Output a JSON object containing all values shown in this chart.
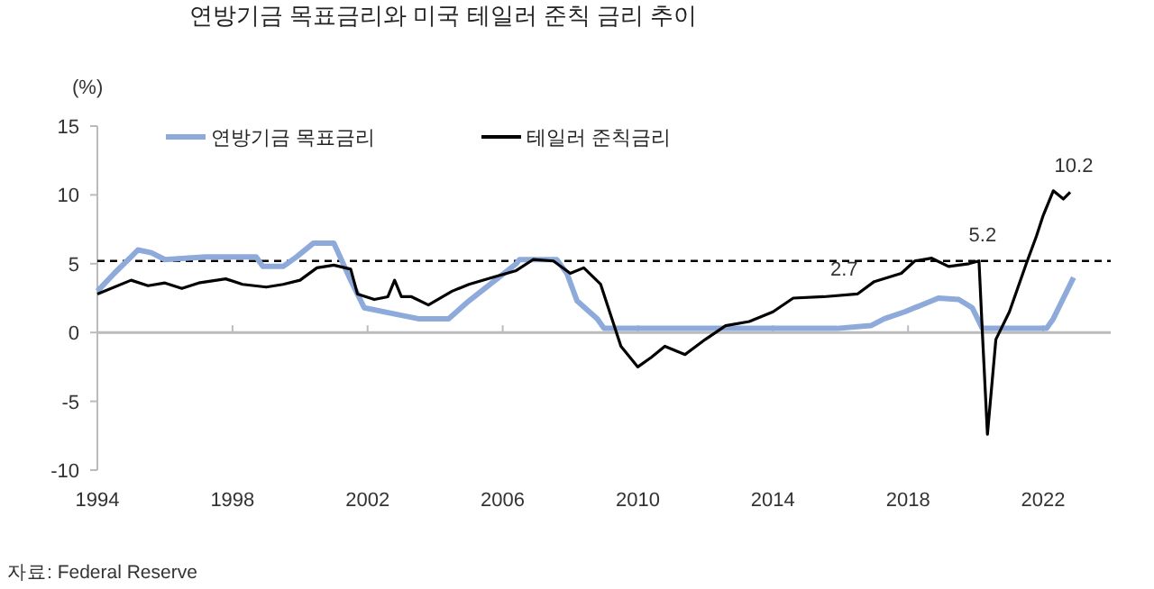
{
  "chart_data": {
    "type": "line",
    "title": "연방기금 목표금리와 미국 테일러 준칙 금리 추이",
    "ylabel": "(%)",
    "xlim": [
      1994,
      2024
    ],
    "xticks": [
      1994,
      1998,
      2002,
      2006,
      2010,
      2014,
      2018,
      2022
    ],
    "ylim": [
      -10,
      15
    ],
    "yticks": [
      -10,
      -5,
      0,
      5,
      10,
      15
    ],
    "legend": "top",
    "line_style": "solid",
    "series": [
      {
        "name": "연방기금 목표금리",
        "color": "#8eaadb",
        "x": [
          1994,
          1994.5,
          1995,
          1995.2,
          1995.6,
          1996,
          1997.2,
          1998.7,
          1998.9,
          1999.5,
          1999.9,
          2000.4,
          2001,
          2001.5,
          2001.9,
          2002.9,
          2003.5,
          2004.4,
          2005,
          2006.4,
          2006.5,
          2007.6,
          2007.9,
          2008.2,
          2008.8,
          2009,
          2015.9,
          2016.9,
          2017.3,
          2017.9,
          2018.9,
          2019.5,
          2019.9,
          2020.2,
          2022.1,
          2022.3,
          2022.6,
          2022.9
        ],
        "values": [
          3.0,
          4.3,
          5.5,
          6.0,
          5.8,
          5.3,
          5.5,
          5.5,
          4.8,
          4.8,
          5.5,
          6.5,
          6.5,
          3.8,
          1.8,
          1.3,
          1.0,
          1.0,
          2.3,
          5.0,
          5.3,
          5.3,
          4.3,
          2.3,
          1.0,
          0.3,
          0.3,
          0.5,
          1.0,
          1.5,
          2.5,
          2.4,
          1.8,
          0.3,
          0.3,
          1.0,
          2.5,
          4.0
        ]
      },
      {
        "name": "테일러 준칙금리",
        "color": "#000000",
        "x": [
          1994,
          1995,
          1995.5,
          1996,
          1996.5,
          1997,
          1997.8,
          1998.3,
          1999,
          1999.5,
          2000,
          2000.5,
          2001,
          2001.5,
          2001.7,
          2002.2,
          2002.6,
          2002.8,
          2003,
          2003.3,
          2003.8,
          2004.5,
          2005,
          2005.7,
          2006.4,
          2006.9,
          2007.5,
          2008,
          2008.4,
          2008.9,
          2009.1,
          2009.5,
          2010.0,
          2010.4,
          2010.8,
          2011.4,
          2012,
          2012.6,
          2013.3,
          2014,
          2014.6,
          2015.5,
          2016.5,
          2017,
          2017.8,
          2018.2,
          2018.7,
          2019.2,
          2019.8,
          2020.1,
          2020.2,
          2020.35,
          2020.6,
          2021,
          2021.5,
          2021.8,
          2022,
          2022.3,
          2022.6,
          2022.8
        ],
        "values": [
          2.8,
          3.8,
          3.4,
          3.6,
          3.2,
          3.6,
          3.9,
          3.5,
          3.3,
          3.5,
          3.8,
          4.7,
          4.9,
          4.6,
          2.8,
          2.4,
          2.6,
          3.8,
          2.6,
          2.6,
          2.0,
          3.0,
          3.5,
          4.0,
          4.5,
          5.3,
          5.2,
          4.3,
          4.7,
          3.5,
          2.0,
          -1.0,
          -2.5,
          -1.8,
          -1.0,
          -1.6,
          -0.5,
          0.5,
          0.8,
          1.5,
          2.5,
          2.6,
          2.8,
          3.7,
          4.3,
          5.2,
          5.4,
          4.8,
          5.0,
          5.2,
          0,
          -7.4,
          -0.5,
          1.5,
          5.0,
          7.0,
          8.5,
          10.3,
          9.7,
          10.2
        ]
      }
    ],
    "ref_lines": [
      {
        "axis": "y",
        "value": 5.2,
        "color": "#000000",
        "line_style": "dashed"
      }
    ],
    "annotations": [
      {
        "text": "5.2",
        "x": 2020.1,
        "y": 5.2
      },
      {
        "text": "2.7",
        "x": 2016,
        "y": 2.7
      },
      {
        "text": "10.2",
        "x": 2022.8,
        "y": 10.2
      },
      "자료: Federal Reserve"
    ]
  }
}
